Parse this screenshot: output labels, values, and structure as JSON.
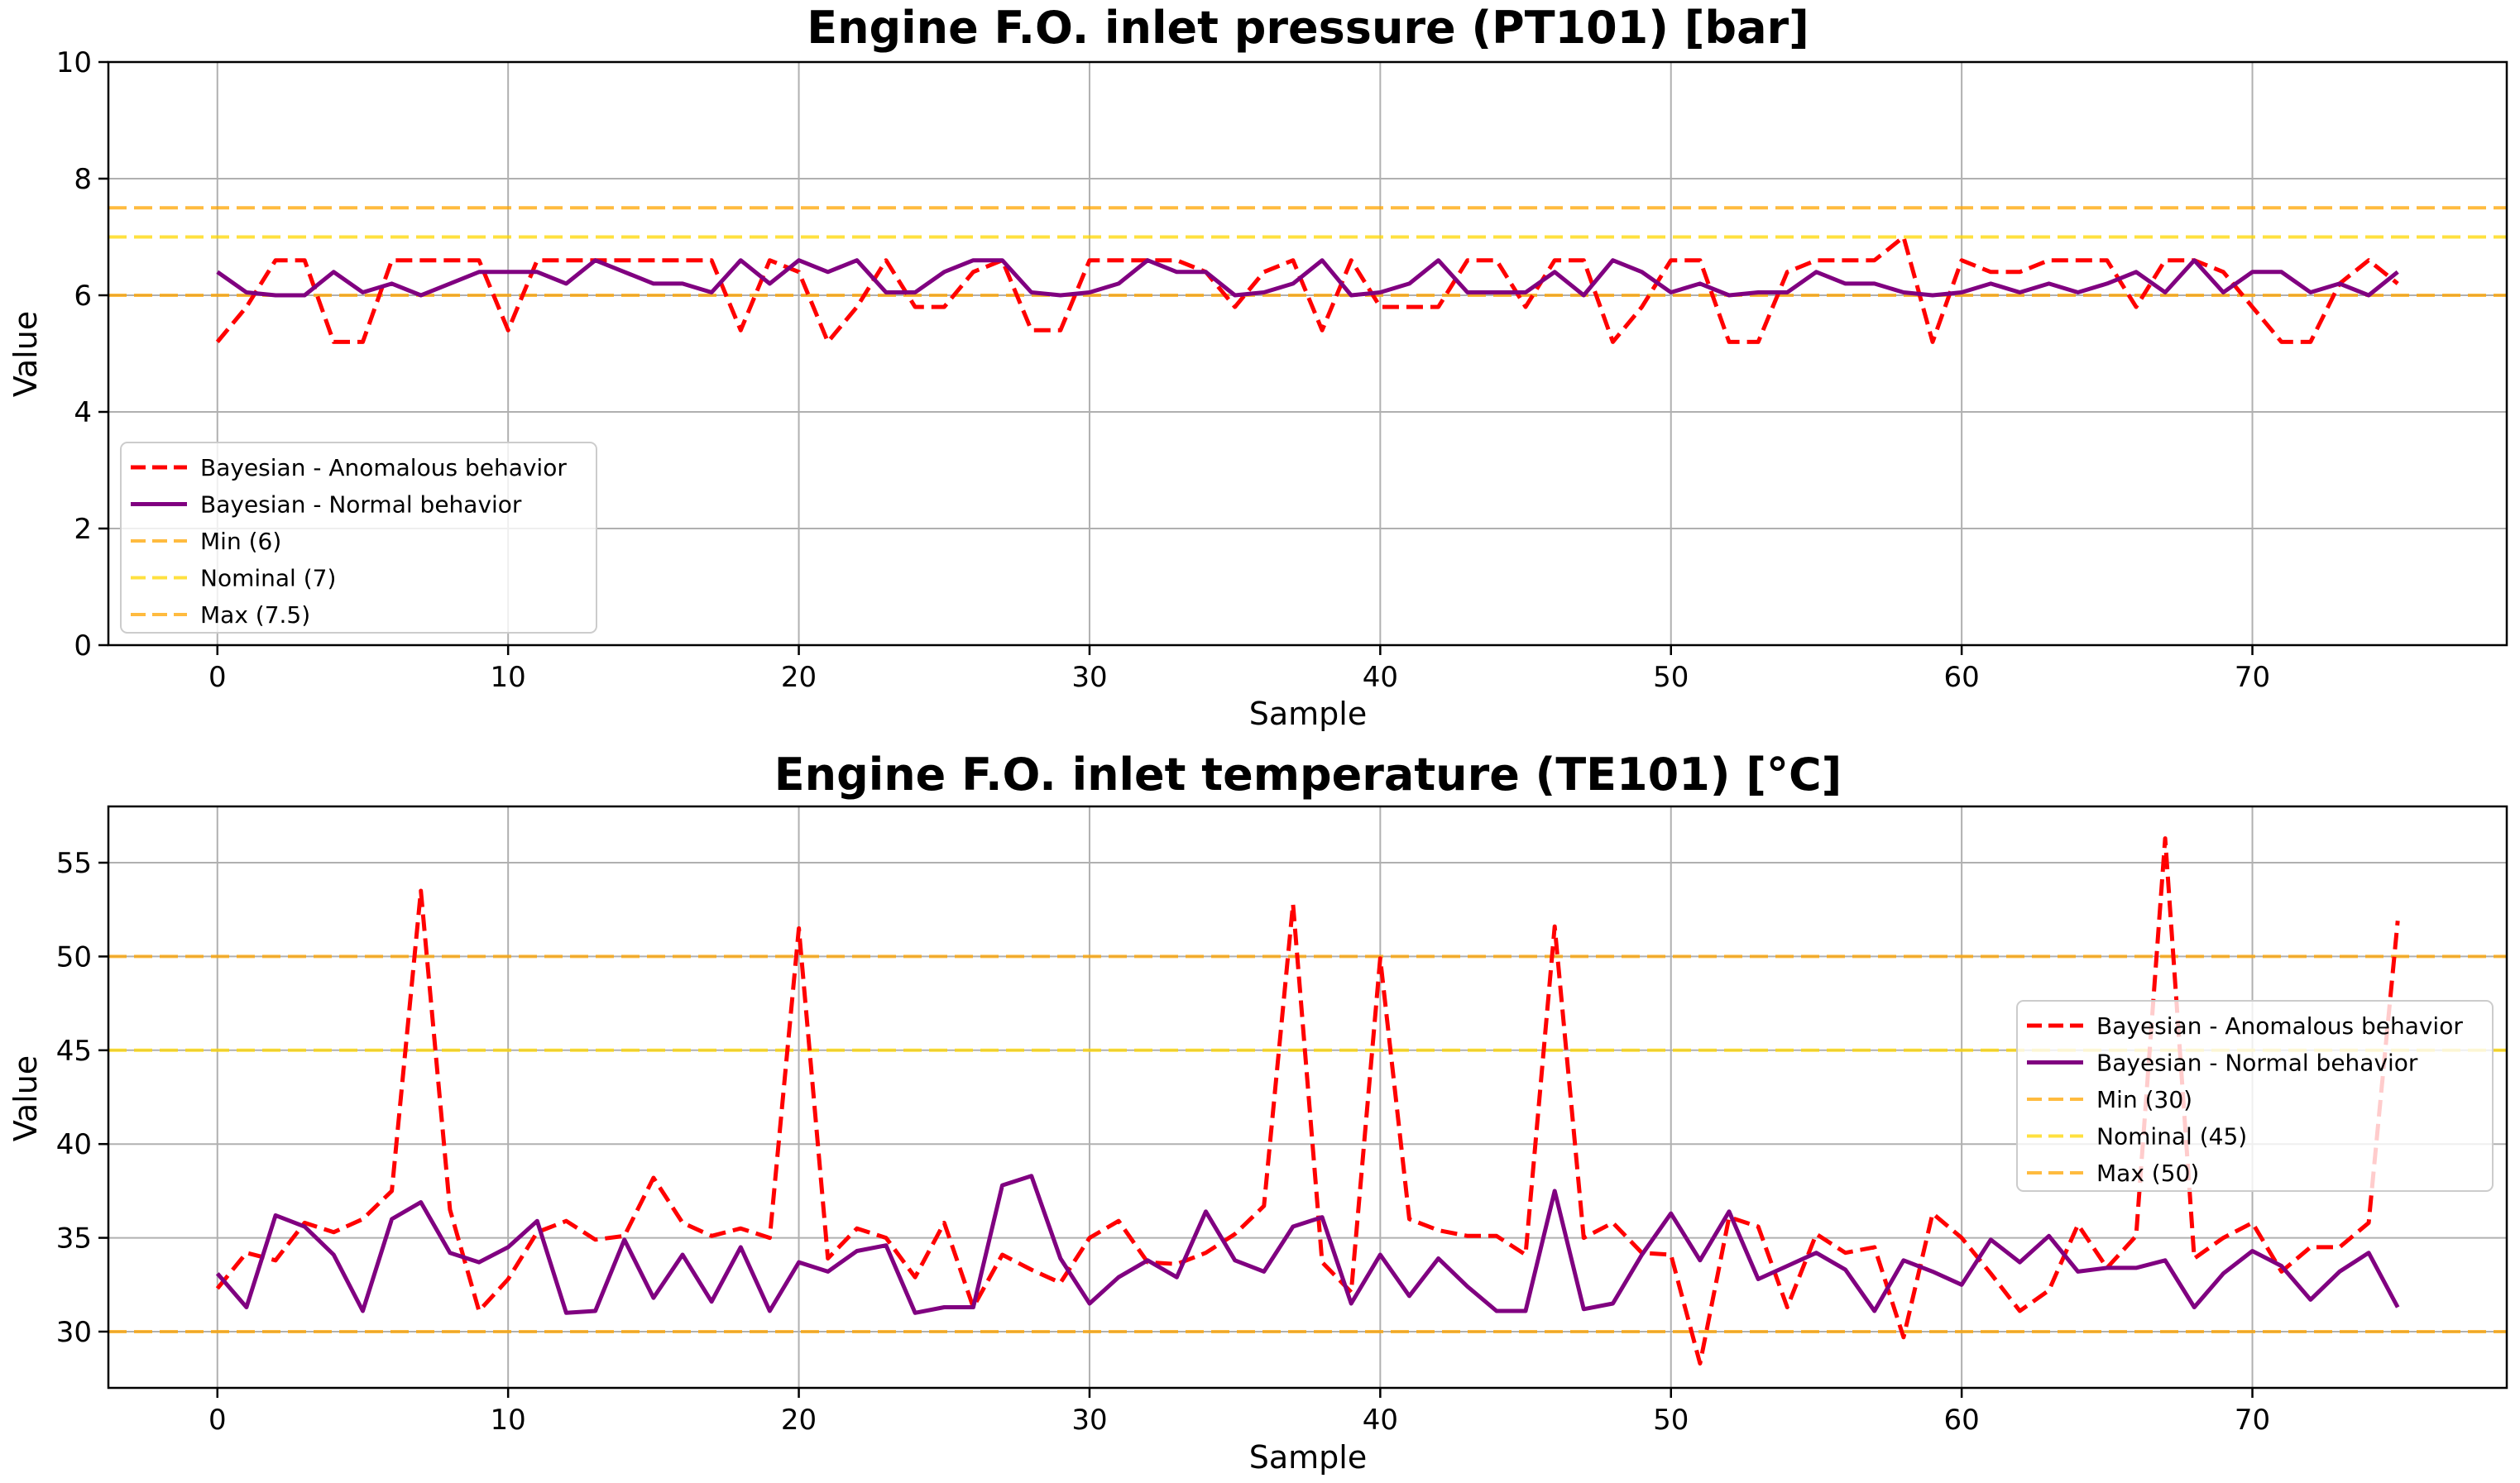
{
  "chart_data": [
    {
      "type": "line",
      "title": "Engine F.O. inlet pressure (PT101) [bar]",
      "xlabel": "Sample",
      "ylabel": "Value",
      "xlim": [
        -3.75,
        78.75
      ],
      "ylim": [
        0,
        10
      ],
      "xticks": [
        0,
        10,
        20,
        30,
        40,
        50,
        60,
        70
      ],
      "yticks": [
        0,
        2,
        4,
        6,
        8,
        10
      ],
      "xtick_labels": [
        "0",
        "10",
        "20",
        "30",
        "40",
        "50",
        "60",
        "70"
      ],
      "ytick_labels": [
        "0",
        "2",
        "4",
        "6",
        "8",
        "10"
      ],
      "grid": true,
      "legend_position": "lower-left",
      "series": [
        {
          "name": "Bayesian - Anomalous behavior",
          "color": "#ff0000",
          "style": "dashed",
          "values": [
            5.2,
            5.8,
            6.6,
            6.6,
            5.2,
            5.2,
            6.6,
            6.6,
            6.6,
            6.6,
            5.4,
            6.6,
            6.6,
            6.6,
            6.6,
            6.6,
            6.6,
            6.6,
            5.4,
            6.6,
            6.4,
            5.2,
            5.8,
            6.6,
            5.8,
            5.8,
            6.4,
            6.6,
            5.4,
            5.4,
            6.6,
            6.6,
            6.6,
            6.6,
            6.4,
            5.8,
            6.4,
            6.6,
            5.4,
            6.6,
            5.8,
            5.8,
            5.8,
            6.6,
            6.6,
            5.8,
            6.6,
            6.6,
            5.2,
            5.8,
            6.6,
            6.6,
            5.2,
            5.2,
            6.4,
            6.6,
            6.6,
            6.6,
            7.0,
            5.2,
            6.6,
            6.4,
            6.4,
            6.6,
            6.6,
            6.6,
            5.8,
            6.6,
            6.6,
            6.4,
            5.8,
            5.2,
            5.2,
            6.2,
            6.6,
            6.2
          ]
        },
        {
          "name": "Bayesian - Normal behavior",
          "color": "#800080",
          "style": "solid",
          "values": [
            6.4,
            6.05,
            6.0,
            6.0,
            6.4,
            6.05,
            6.2,
            6.0,
            6.2,
            6.4,
            6.4,
            6.4,
            6.2,
            6.6,
            6.4,
            6.2,
            6.2,
            6.05,
            6.6,
            6.2,
            6.6,
            6.4,
            6.6,
            6.05,
            6.05,
            6.4,
            6.6,
            6.6,
            6.05,
            6.0,
            6.05,
            6.2,
            6.6,
            6.4,
            6.4,
            6.0,
            6.05,
            6.2,
            6.6,
            6.0,
            6.05,
            6.2,
            6.6,
            6.05,
            6.05,
            6.05,
            6.4,
            6.0,
            6.6,
            6.4,
            6.05,
            6.2,
            6.0,
            6.05,
            6.05,
            6.4,
            6.2,
            6.2,
            6.05,
            6.0,
            6.05,
            6.2,
            6.05,
            6.2,
            6.05,
            6.2,
            6.4,
            6.05,
            6.6,
            6.05,
            6.4,
            6.4,
            6.05,
            6.2,
            6.0,
            6.4
          ]
        }
      ],
      "reference_lines": [
        {
          "name": "Min (6)",
          "value": 6,
          "color": "#ffa500"
        },
        {
          "name": "Nominal (7)",
          "value": 7,
          "color": "#ffd700"
        },
        {
          "name": "Max (7.5)",
          "value": 7.5,
          "color": "#ffa500"
        }
      ]
    },
    {
      "type": "line",
      "title": "Engine F.O. inlet temperature (TE101) [°C]",
      "xlabel": "Sample",
      "ylabel": "Value",
      "xlim": [
        -3.75,
        78.75
      ],
      "ylim": [
        27,
        58
      ],
      "xticks": [
        0,
        10,
        20,
        30,
        40,
        50,
        60,
        70
      ],
      "yticks": [
        30,
        35,
        40,
        45,
        50,
        55
      ],
      "xtick_labels": [
        "0",
        "10",
        "20",
        "30",
        "40",
        "50",
        "60",
        "70"
      ],
      "ytick_labels": [
        "30",
        "35",
        "40",
        "45",
        "50",
        "55"
      ],
      "grid": true,
      "legend_position": "center-right",
      "series": [
        {
          "name": "Bayesian - Anomalous behavior",
          "color": "#ff0000",
          "style": "dashed",
          "values": [
            32.3,
            34.2,
            33.8,
            35.8,
            35.3,
            36.0,
            37.5,
            53.5,
            36.5,
            31.1,
            32.8,
            35.3,
            35.9,
            34.9,
            35.1,
            38.2,
            35.8,
            35.1,
            35.5,
            35.0,
            51.5,
            33.9,
            35.5,
            35.0,
            32.9,
            35.8,
            31.3,
            34.1,
            33.3,
            32.6,
            35.0,
            35.9,
            33.7,
            33.6,
            34.2,
            35.2,
            36.7,
            52.8,
            33.7,
            32.1,
            49.9,
            36.0,
            35.4,
            35.1,
            35.1,
            34.1,
            51.6,
            35.0,
            35.8,
            34.2,
            34.1,
            28.3,
            36.1,
            35.6,
            31.3,
            35.2,
            34.2,
            34.5,
            29.7,
            36.3,
            35.0,
            33.1,
            31.1,
            32.2,
            35.7,
            33.4,
            35.1,
            56.3,
            33.9,
            35.0,
            35.8,
            33.2,
            34.5,
            34.5,
            35.8,
            51.9
          ]
        },
        {
          "name": "Bayesian - Normal behavior",
          "color": "#800080",
          "style": "solid",
          "values": [
            33.1,
            31.3,
            36.2,
            35.6,
            34.1,
            31.1,
            36.0,
            36.9,
            34.2,
            33.7,
            34.5,
            35.9,
            31.0,
            31.1,
            34.9,
            31.8,
            34.1,
            31.6,
            34.5,
            31.1,
            33.7,
            33.2,
            34.3,
            34.6,
            31.0,
            31.3,
            31.3,
            37.8,
            38.3,
            33.9,
            31.5,
            32.9,
            33.8,
            32.9,
            36.4,
            33.8,
            33.2,
            35.6,
            36.1,
            31.5,
            34.1,
            31.9,
            33.9,
            32.4,
            31.1,
            31.1,
            37.5,
            31.2,
            31.5,
            34.1,
            36.3,
            33.8,
            36.4,
            32.8,
            33.5,
            34.2,
            33.3,
            31.1,
            33.8,
            33.2,
            32.5,
            34.9,
            33.7,
            35.1,
            33.2,
            33.4,
            33.4,
            33.8,
            31.3,
            33.1,
            34.3,
            33.5,
            31.7,
            33.2,
            34.2,
            31.3
          ]
        }
      ],
      "reference_lines": [
        {
          "name": "Min (30)",
          "value": 30,
          "color": "#ffa500"
        },
        {
          "name": "Nominal (45)",
          "value": 45,
          "color": "#ffd700"
        },
        {
          "name": "Max (50)",
          "value": 50,
          "color": "#ffa500"
        }
      ]
    }
  ]
}
